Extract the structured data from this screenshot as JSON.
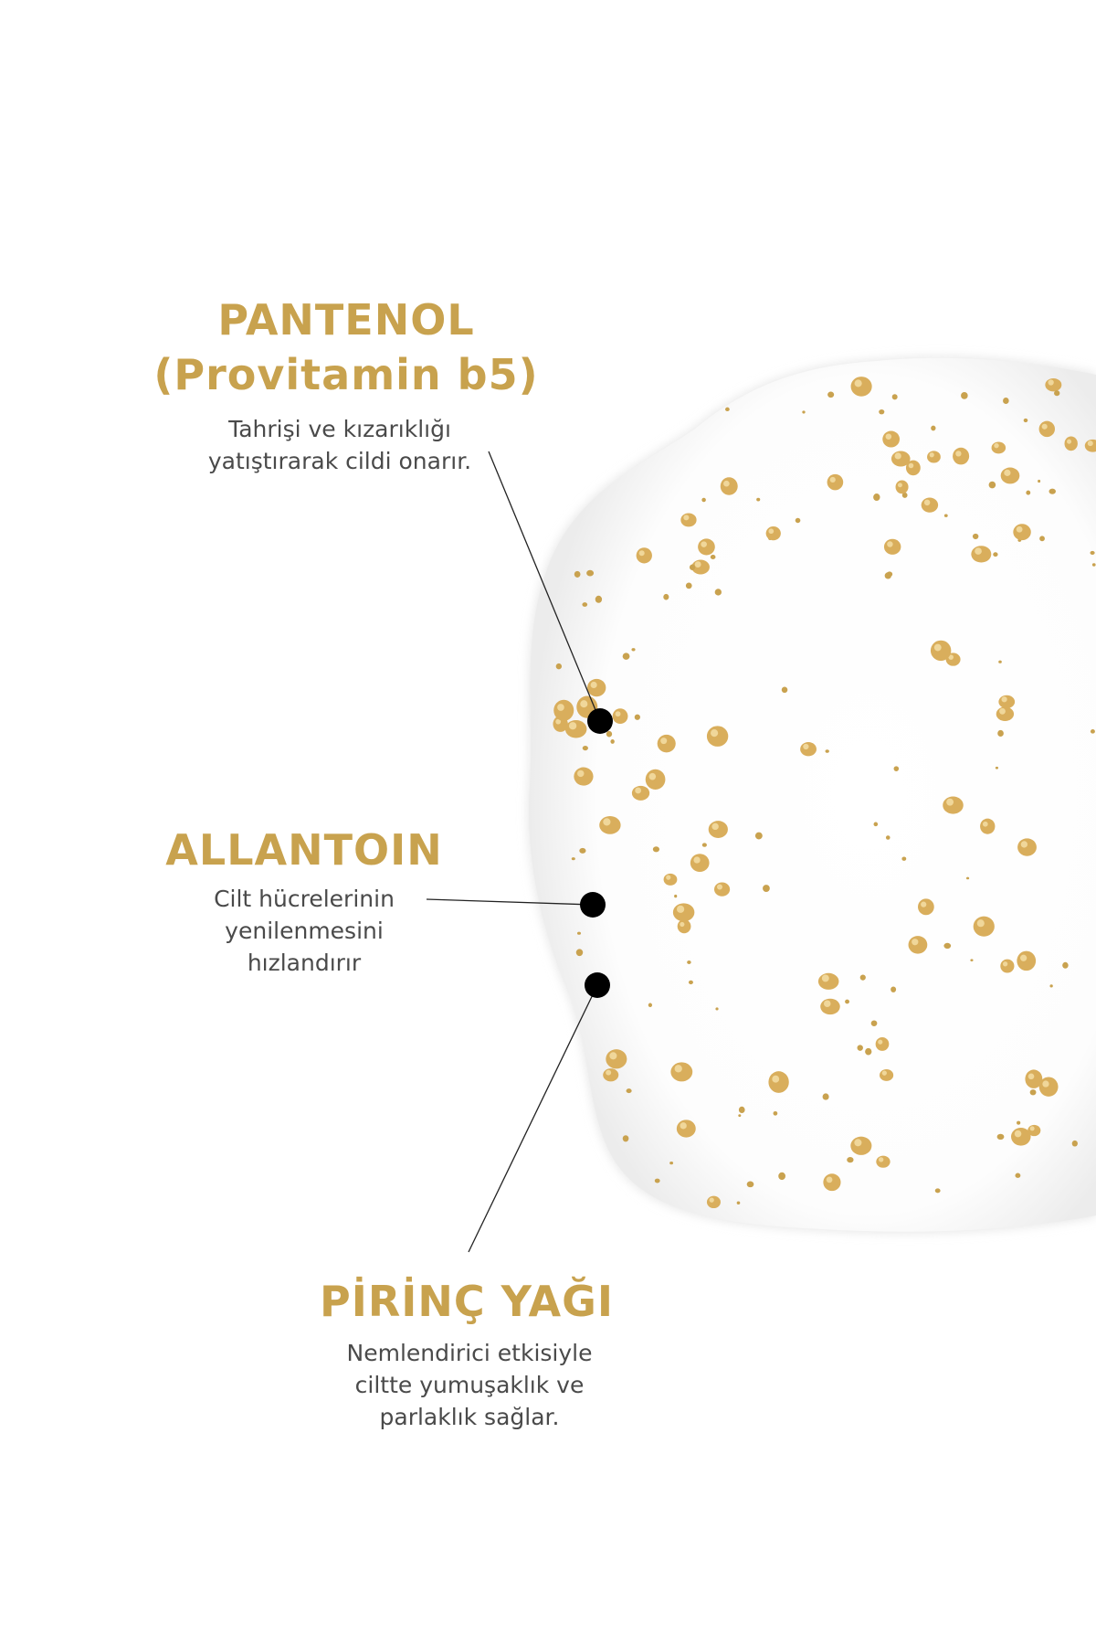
{
  "colors": {
    "accent": "#C8A24E",
    "text": "#4a4a4a",
    "marker": "#000000",
    "background": "#ffffff"
  },
  "image": {
    "subject": "cream-swatch-with-gold-granules"
  },
  "ingredients": [
    {
      "title_lines": [
        "PANTENOL",
        "(Provitamin b5)"
      ],
      "desc_lines": [
        "Tahrişi ve kızarıklığı",
        "yatıştırarak cildi onarır."
      ]
    },
    {
      "title_lines": [
        "ALLANTOIN"
      ],
      "desc_lines": [
        "Cilt hücrelerinin",
        "yenilenmesini",
        "hızlandırır"
      ]
    },
    {
      "title_lines": [
        "PİRİNÇ YAĞI"
      ],
      "desc_lines": [
        "Nemlendirici etkisiyle",
        "ciltte yumuşaklık ve",
        "parlaklık sağlar."
      ]
    }
  ]
}
